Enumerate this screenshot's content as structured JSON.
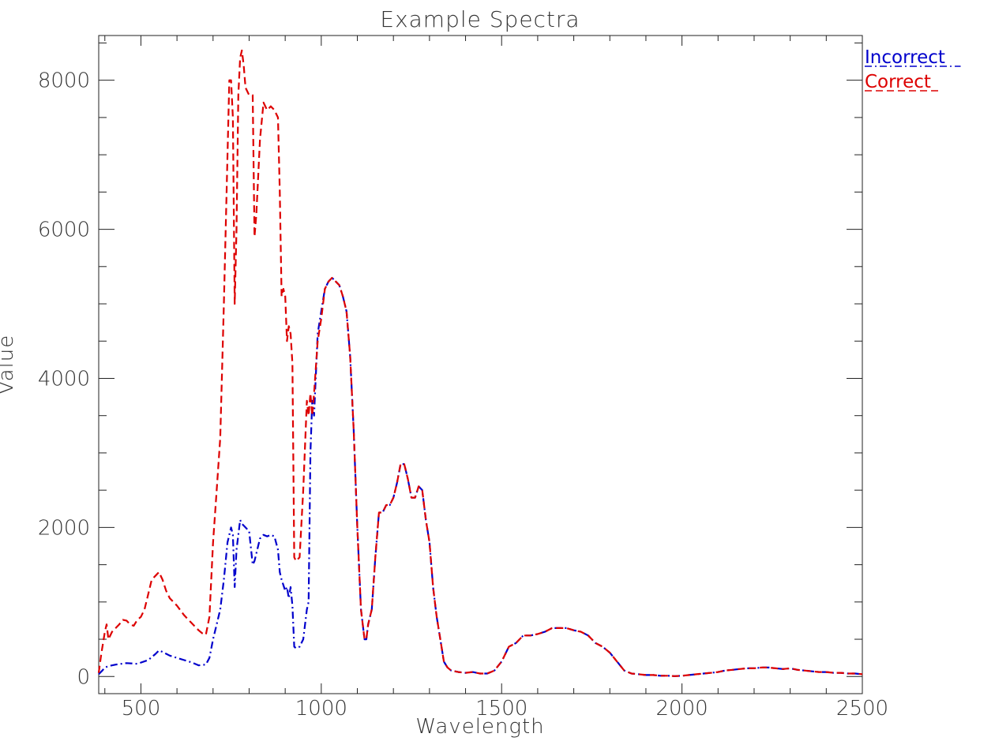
{
  "chart_data": {
    "type": "line",
    "title": "Example Spectra",
    "xlabel": "Wavelength",
    "ylabel": "Value",
    "xlim": [
      383,
      2500
    ],
    "ylim": [
      -230,
      8600
    ],
    "x_ticks": [
      500,
      1000,
      1500,
      2000,
      2500
    ],
    "y_ticks": [
      0,
      2000,
      4000,
      6000,
      8000
    ],
    "grid": false,
    "legend": "top-right",
    "series": [
      {
        "name": "Incorrect",
        "color": "#0000cc",
        "style": "dash-dot",
        "x": [
          383,
          393,
          400,
          410,
          430,
          460,
          490,
          520,
          540,
          550,
          560,
          580,
          600,
          620,
          640,
          660,
          680,
          690,
          700,
          710,
          720,
          730,
          740,
          750,
          755,
          760,
          765,
          770,
          775,
          780,
          790,
          800,
          810,
          815,
          820,
          830,
          840,
          850,
          860,
          870,
          880,
          885,
          890,
          900,
          905,
          910,
          915,
          920,
          925,
          930,
          940,
          950,
          955,
          960,
          965,
          970,
          975,
          980,
          990,
          1000,
          1010,
          1020,
          1030,
          1040,
          1050,
          1060,
          1070,
          1080,
          1090,
          1100,
          1110,
          1120,
          1125,
          1130,
          1140,
          1150,
          1160,
          1170,
          1180,
          1190,
          1200,
          1210,
          1220,
          1230,
          1240,
          1250,
          1260,
          1270,
          1280,
          1290,
          1300,
          1310,
          1320,
          1330,
          1340,
          1350,
          1360,
          1380,
          1400,
          1420,
          1440,
          1460,
          1480,
          1500,
          1520,
          1540,
          1560,
          1580,
          1600,
          1620,
          1640,
          1660,
          1680,
          1700,
          1720,
          1740,
          1760,
          1780,
          1800,
          1820,
          1840,
          1860,
          1880,
          1900,
          1920,
          1940,
          1960,
          1980,
          2000,
          2020,
          2040,
          2060,
          2080,
          2100,
          2120,
          2140,
          2160,
          2180,
          2200,
          2220,
          2240,
          2260,
          2280,
          2300,
          2320,
          2340,
          2360,
          2380,
          2400,
          2420,
          2440,
          2460,
          2480,
          2500
        ],
        "values": [
          30,
          80,
          120,
          140,
          160,
          180,
          170,
          220,
          300,
          350,
          330,
          280,
          250,
          220,
          190,
          150,
          160,
          250,
          500,
          700,
          900,
          1300,
          1800,
          2000,
          1900,
          1200,
          1700,
          1900,
          2100,
          2050,
          2000,
          1950,
          1500,
          1550,
          1650,
          1850,
          1900,
          1880,
          1900,
          1880,
          1700,
          1400,
          1300,
          1150,
          1200,
          1050,
          1200,
          950,
          400,
          380,
          400,
          500,
          700,
          900,
          1000,
          3000,
          3700,
          3500,
          4600,
          4900,
          5200,
          5300,
          5350,
          5300,
          5250,
          5100,
          4900,
          4300,
          3300,
          2000,
          900,
          500,
          500,
          700,
          900,
          1600,
          2200,
          2200,
          2300,
          2300,
          2400,
          2600,
          2850,
          2850,
          2650,
          2400,
          2400,
          2550,
          2500,
          2100,
          1800,
          1200,
          800,
          500,
          200,
          120,
          80,
          60,
          50,
          60,
          40,
          40,
          80,
          200,
          400,
          450,
          550,
          550,
          570,
          600,
          650,
          650,
          650,
          620,
          600,
          550,
          450,
          400,
          320,
          200,
          80,
          40,
          30,
          20,
          20,
          10,
          10,
          5,
          10,
          20,
          30,
          40,
          50,
          60,
          80,
          90,
          100,
          110,
          110,
          120,
          120,
          110,
          100,
          110,
          90,
          80,
          70,
          60,
          60,
          50,
          50,
          40,
          40,
          30
        ],
        "legend_label": "Incorrect"
      },
      {
        "name": "Correct",
        "color": "#dd0000",
        "style": "dashed",
        "x": [
          383,
          390,
          395,
          400,
          405,
          410,
          420,
          430,
          440,
          450,
          460,
          470,
          480,
          490,
          500,
          510,
          520,
          530,
          540,
          550,
          560,
          570,
          580,
          590,
          600,
          620,
          640,
          660,
          670,
          680,
          690,
          700,
          710,
          720,
          730,
          740,
          745,
          750,
          755,
          760,
          765,
          770,
          775,
          780,
          785,
          790,
          800,
          810,
          815,
          820,
          830,
          840,
          850,
          860,
          870,
          880,
          885,
          890,
          895,
          900,
          905,
          910,
          915,
          920,
          925,
          930,
          940,
          950,
          960,
          965,
          970,
          975,
          980,
          990,
          1000,
          1010,
          1020,
          1030,
          1040,
          1050,
          1060,
          1070,
          1080,
          1090,
          1100,
          1110,
          1120,
          1125,
          1130,
          1140,
          1150,
          1160,
          1170,
          1180,
          1190,
          1200,
          1210,
          1220,
          1230,
          1240,
          1250,
          1260,
          1270,
          1280,
          1290,
          1300,
          1310,
          1320,
          1330,
          1340,
          1350,
          1360,
          1380,
          1400,
          1420,
          1440,
          1460,
          1480,
          1500,
          1520,
          1540,
          1560,
          1580,
          1600,
          1620,
          1640,
          1660,
          1680,
          1700,
          1720,
          1740,
          1760,
          1780,
          1800,
          1820,
          1840,
          1860,
          1880,
          1900,
          1920,
          1940,
          1960,
          1980,
          2000,
          2020,
          2040,
          2060,
          2080,
          2100,
          2120,
          2140,
          2160,
          2180,
          2200,
          2220,
          2240,
          2260,
          2280,
          2300,
          2320,
          2340,
          2360,
          2380,
          2400,
          2420,
          2440,
          2460,
          2480,
          2500
        ],
        "values": [
          50,
          300,
          450,
          600,
          700,
          500,
          600,
          650,
          700,
          760,
          750,
          700,
          680,
          760,
          800,
          900,
          1100,
          1300,
          1350,
          1400,
          1300,
          1150,
          1050,
          1000,
          950,
          820,
          720,
          620,
          580,
          560,
          800,
          1800,
          2500,
          3200,
          5000,
          7000,
          8000,
          8000,
          7500,
          5000,
          6000,
          7800,
          8300,
          8400,
          8200,
          7900,
          7800,
          7800,
          5900,
          6200,
          7200,
          7700,
          7600,
          7650,
          7600,
          7500,
          6500,
          5100,
          5200,
          5100,
          4500,
          4700,
          4600,
          4200,
          1600,
          1550,
          1600,
          2500,
          3700,
          3500,
          3800,
          3500,
          3800,
          4500,
          4800,
          5200,
          5300,
          5350,
          5300,
          5250,
          5100,
          4900,
          4300,
          3300,
          2000,
          900,
          500,
          500,
          700,
          900,
          1600,
          2200,
          2200,
          2300,
          2300,
          2400,
          2600,
          2850,
          2850,
          2650,
          2400,
          2400,
          2550,
          2500,
          2100,
          1800,
          1200,
          800,
          500,
          200,
          120,
          80,
          60,
          50,
          60,
          40,
          40,
          80,
          200,
          400,
          450,
          550,
          550,
          570,
          600,
          650,
          650,
          650,
          620,
          600,
          550,
          450,
          400,
          320,
          200,
          80,
          40,
          30,
          20,
          20,
          10,
          10,
          5,
          10,
          20,
          30,
          40,
          50,
          60,
          80,
          90,
          100,
          110,
          110,
          120,
          120,
          110,
          100,
          110,
          90,
          80,
          70,
          60,
          60,
          50,
          50,
          40,
          40,
          30
        ],
        "legend_label": "Correct"
      }
    ]
  }
}
